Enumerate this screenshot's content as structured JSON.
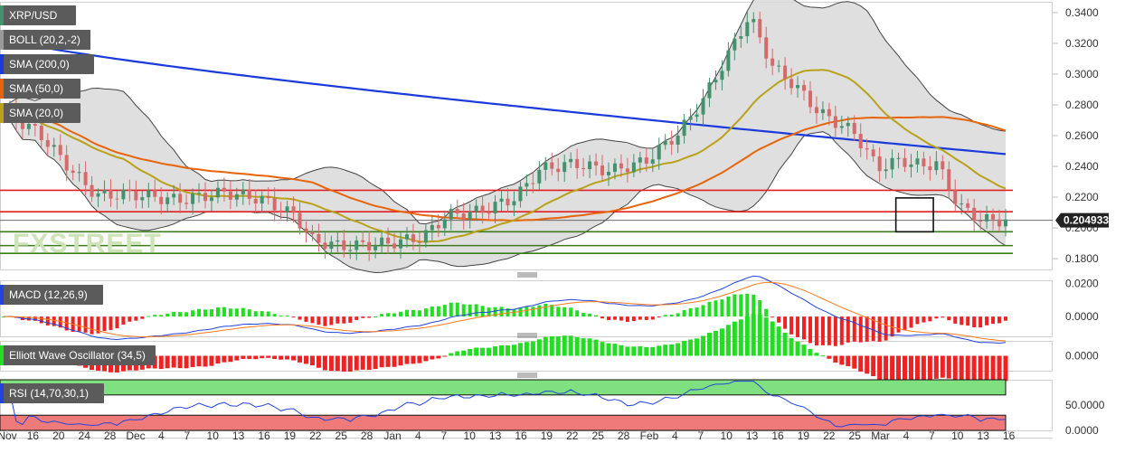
{
  "chart_data": {
    "type": "candlestick",
    "symbol": "XRP/USD",
    "last_price": "0.204933",
    "price_axis": {
      "ticks": [
        "0.3400",
        "0.3200",
        "0.3000",
        "0.2800",
        "0.2600",
        "0.2400",
        "0.2200",
        "0.2000",
        "0.1800"
      ],
      "range": [
        0.173,
        0.347
      ]
    },
    "x_axis": {
      "labels": [
        "Nov",
        "16",
        "20",
        "24",
        "28",
        "Dec",
        "4",
        "7",
        "10",
        "13",
        "16",
        "19",
        "22",
        "25",
        "28",
        "Jan",
        "4",
        "7",
        "10",
        "13",
        "16",
        "19",
        "22",
        "25",
        "28",
        "Feb",
        "4",
        "7",
        "10",
        "13",
        "16",
        "19",
        "22",
        "25",
        "Mar",
        "4",
        "7",
        "10",
        "13",
        "16"
      ]
    },
    "legend": [
      "XRP/USD",
      "BOLL (20,2,-2)",
      "SMA (200,0)",
      "SMA (50,0)",
      "SMA (20,0)"
    ],
    "indicators": [
      {
        "name": "MACD (12,26,9)",
        "ticks": [
          "0.0200",
          "0.0000"
        ],
        "range": [
          -0.012,
          0.022
        ]
      },
      {
        "name": "Elliott Wave Oscillator (34,5)",
        "ticks": [
          "0.0000"
        ],
        "range": [
          -0.01,
          0.01
        ]
      },
      {
        "name": "RSI (14,70,30,1)",
        "ticks": [
          "50.0000",
          "0.0000"
        ],
        "range": [
          0,
          100
        ]
      }
    ],
    "horizontal_levels": {
      "red": [
        0.2245,
        0.2105
      ],
      "green": [
        0.1975,
        0.1885,
        0.1835
      ],
      "current_price": 0.204933
    },
    "highlight_box": {
      "x_from": 0.8845,
      "x_to": 0.9215,
      "y_top": 0.2195,
      "y_bottom": 0.1975
    },
    "ohlc": [],
    "watermark": "FXSTREET",
    "colors": {
      "up": "#44916e",
      "down": "#d46a6a",
      "boll": "#9a9a9a",
      "boll_fill": "#d9d9d9",
      "sma200": "#1a3bdb",
      "sma50": "#e8640a",
      "sma20": "#b8a21a",
      "level_red": "#e02020",
      "level_green": "#3a7d1a",
      "macd_line": "#2244dd",
      "macd_signal": "#ff7a1a",
      "hist_pos": "#22dd22",
      "hist_neg": "#ee2222",
      "rsi_line": "#2244dd",
      "rsi_over": "#7ee07e",
      "rsi_under": "#ee7a7a"
    }
  }
}
